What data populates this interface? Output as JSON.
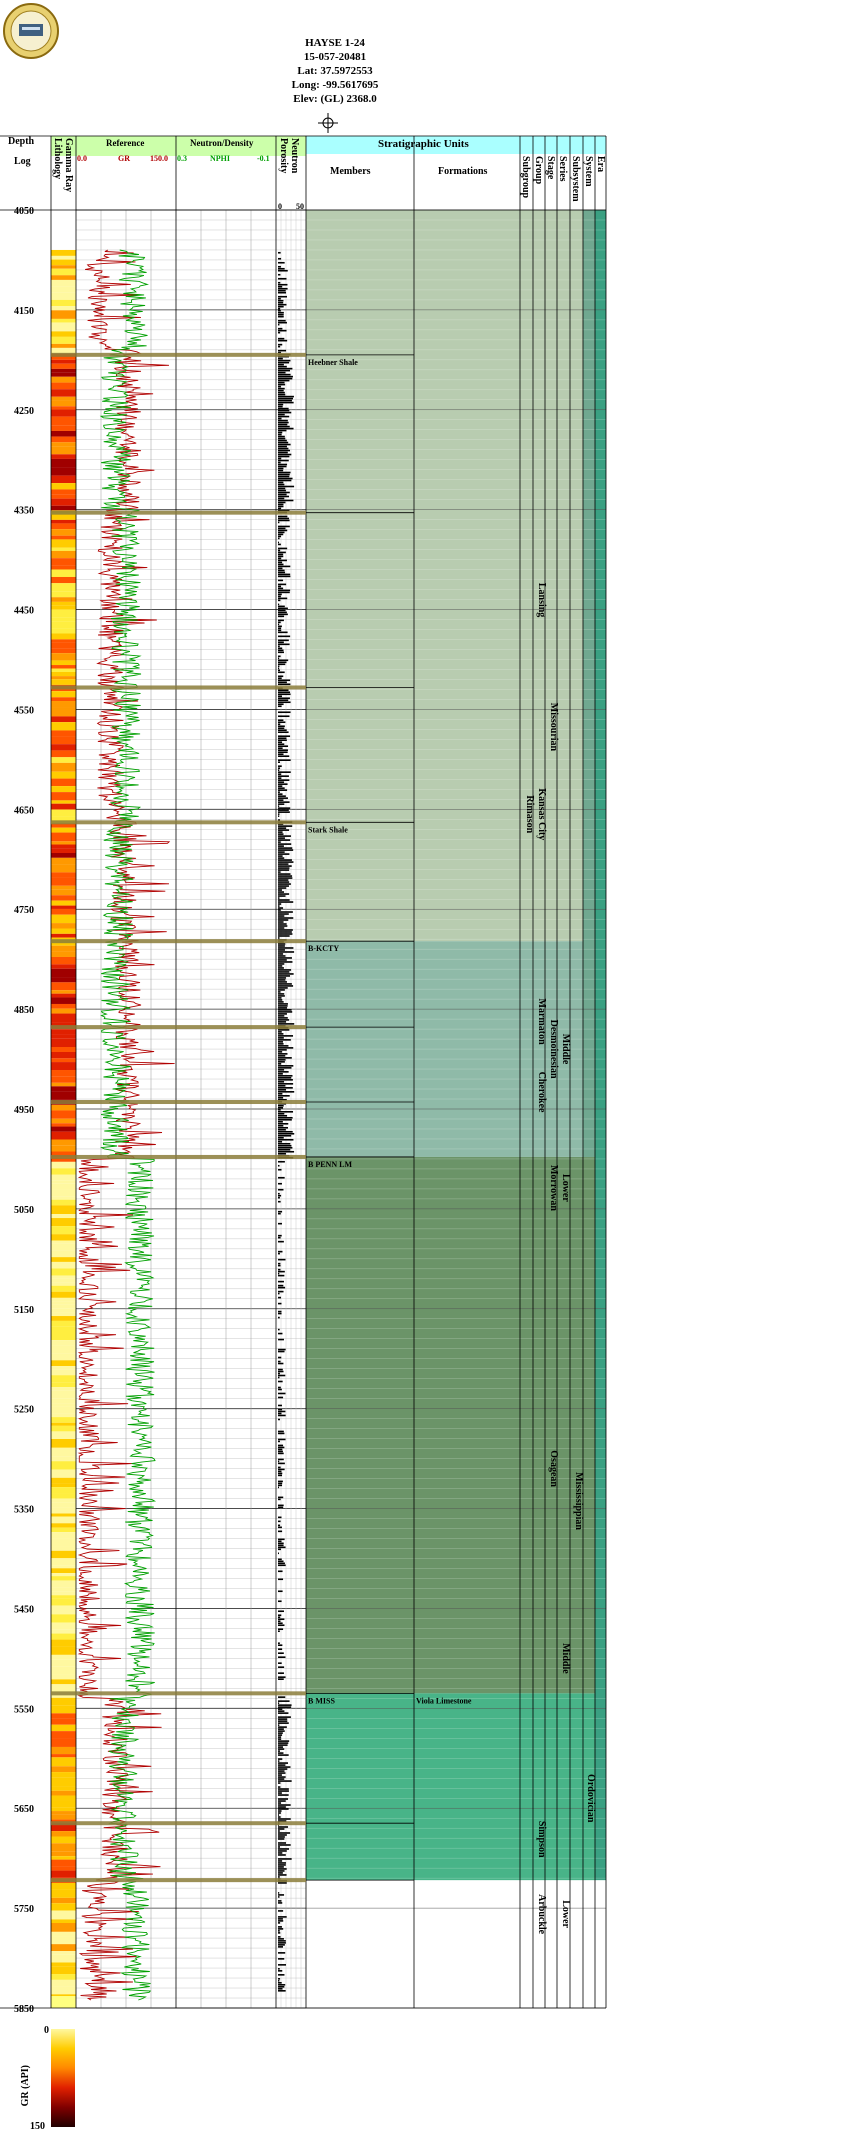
{
  "header": {
    "well_name": "HAYSE 1-24",
    "api": "15-057-20481",
    "lat": "Lat: 37.5972553",
    "long": "Long: -99.5617695",
    "elev": "Elev: (GL) 2368.0"
  },
  "columns": {
    "depth": "Depth",
    "log": "Log",
    "lithology": "Lithology",
    "gamma_ray": "Gamma Ray",
    "reference": "Reference",
    "gr_min": "0.0",
    "gr_name": "GR",
    "gr_max": "150.0",
    "neutron_density": "Neutron/Density",
    "nphi_min": "0.3",
    "nphi_name": "NPHI",
    "nphi_max": "-0.1",
    "porosity": "Porosity",
    "neutron": "Neutron",
    "por_min": "0",
    "por_max": "50",
    "strat_units": "Stratigraphic Units",
    "members": "Members",
    "formations": "Formations",
    "subgroup": "Subgroup",
    "group": "Group",
    "stage": "Stage",
    "series": "Series",
    "subsystem": "Subsystem",
    "system": "System",
    "era": "Era"
  },
  "legend": {
    "title": "GR (API)",
    "min": "0",
    "max": "150"
  },
  "colors": {
    "gr_curve": "#b00000",
    "nphi_curve": "#00a000",
    "header_green": "#ccffaa",
    "header_cyan": "#aaffff",
    "penn_fill": "#b8ccb0",
    "lower_penn_fill": "#8fbaa8",
    "miss_fill": "#6b9468",
    "ord_fill": "#48b488",
    "era_fill": "#3aa082",
    "top_line": "#8b7d3a"
  },
  "chart_data": {
    "type": "well-log",
    "depth_range": [
      4050,
      5850
    ],
    "depth_ticks": [
      "4050",
      "4150",
      "4250",
      "4350",
      "4450",
      "4550",
      "4650",
      "4750",
      "4850",
      "4950",
      "5050",
      "5150",
      "5250",
      "5350",
      "5450",
      "5550",
      "5650",
      "5750",
      "5850"
    ],
    "gr_range": [
      0,
      150
    ],
    "nphi_range": [
      0.3,
      -0.1
    ],
    "porosity_range": [
      0,
      50
    ],
    "log_start_depth": 4090,
    "tops": [
      {
        "depth": 4195,
        "member": "Heebner Shale"
      },
      {
        "depth": 4353,
        "member": ""
      },
      {
        "depth": 4528,
        "member": ""
      },
      {
        "depth": 4663,
        "member": "Stark Shale"
      },
      {
        "depth": 4782,
        "member": "B-KCTY"
      },
      {
        "depth": 4868,
        "member": ""
      },
      {
        "depth": 4943,
        "member": ""
      },
      {
        "depth": 4998,
        "member": "B PENN LM"
      },
      {
        "depth": 5535,
        "member": "B MISS",
        "formation": "Viola Limestone"
      },
      {
        "depth": 5665,
        "member": ""
      },
      {
        "depth": 5722,
        "member": ""
      }
    ],
    "strat_labels": {
      "lansing": "Lansing",
      "kansas_city": "Kansas City",
      "missourian": "Missourian",
      "rimason": "Rimason",
      "middle_penn": "Middle",
      "desmoinesian": "Desmoinesian",
      "marmaton": "Marmaton",
      "cherokee": "Cherokee",
      "morrowan": "Morrowan",
      "lower_penn": "Lower",
      "mississippian": "Mississippian",
      "osagean": "Osagean",
      "middle_ord": "Middle",
      "ordovician": "Ordovician",
      "simpson": "Simpson",
      "arbuckle": "Arbuckle",
      "lower_ord": "Lower"
    }
  }
}
